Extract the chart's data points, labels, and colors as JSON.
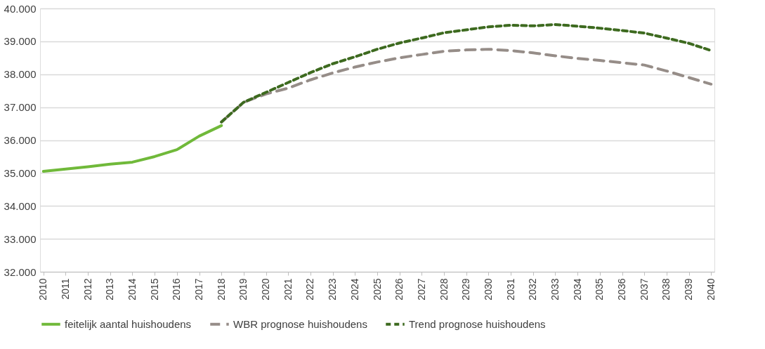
{
  "chart_data": {
    "type": "line",
    "categories": [
      "2010",
      "2011",
      "2012",
      "2013",
      "2014",
      "2015",
      "2016",
      "2017",
      "2018",
      "2019",
      "2020",
      "2021",
      "2022",
      "2023",
      "2024",
      "2025",
      "2026",
      "2027",
      "2028",
      "2029",
      "2030",
      "2031",
      "2032",
      "2033",
      "2034",
      "2035",
      "2036",
      "2037",
      "2038",
      "2039",
      "2040"
    ],
    "series": [
      {
        "name": "feitelijk aantal huishoudens",
        "color": "#70b93a",
        "line_style": "solid",
        "values": [
          35050,
          35120,
          35190,
          35270,
          35330,
          35500,
          35710,
          36120,
          36440,
          null,
          null,
          null,
          null,
          null,
          null,
          null,
          null,
          null,
          null,
          null,
          null,
          null,
          null,
          null,
          null,
          null,
          null,
          null,
          null,
          null,
          null
        ]
      },
      {
        "name": "WBR prognose huishoudens",
        "color": "#968d88",
        "line_style": "dashed",
        "values": [
          null,
          null,
          null,
          null,
          null,
          null,
          null,
          null,
          36550,
          37150,
          37400,
          37580,
          37830,
          38040,
          38220,
          38370,
          38500,
          38600,
          38700,
          38740,
          38760,
          38720,
          38650,
          38560,
          38480,
          38420,
          38350,
          38280,
          38100,
          37900,
          37700
        ]
      },
      {
        "name": "Trend prognose huishoudens",
        "color": "#3d6a1f",
        "line_style": "dotted",
        "values": [
          null,
          null,
          null,
          null,
          null,
          null,
          null,
          null,
          36550,
          37150,
          37450,
          37750,
          38050,
          38320,
          38530,
          38760,
          38950,
          39100,
          39260,
          39350,
          39440,
          39490,
          39470,
          39510,
          39460,
          39400,
          39330,
          39250,
          39100,
          38940,
          38720
        ]
      }
    ],
    "ylim": [
      32000,
      40000
    ],
    "yticks": [
      {
        "value": 32000,
        "label": "32.000"
      },
      {
        "value": 33000,
        "label": "33.000"
      },
      {
        "value": 34000,
        "label": "34.000"
      },
      {
        "value": 35000,
        "label": "35.000"
      },
      {
        "value": 36000,
        "label": "36.000"
      },
      {
        "value": 37000,
        "label": "37.000"
      },
      {
        "value": 38000,
        "label": "38.000"
      },
      {
        "value": 39000,
        "label": "39.000"
      },
      {
        "value": 40000,
        "label": "40.000"
      }
    ],
    "grid": "y",
    "legend": "bottom",
    "marker": "none"
  }
}
